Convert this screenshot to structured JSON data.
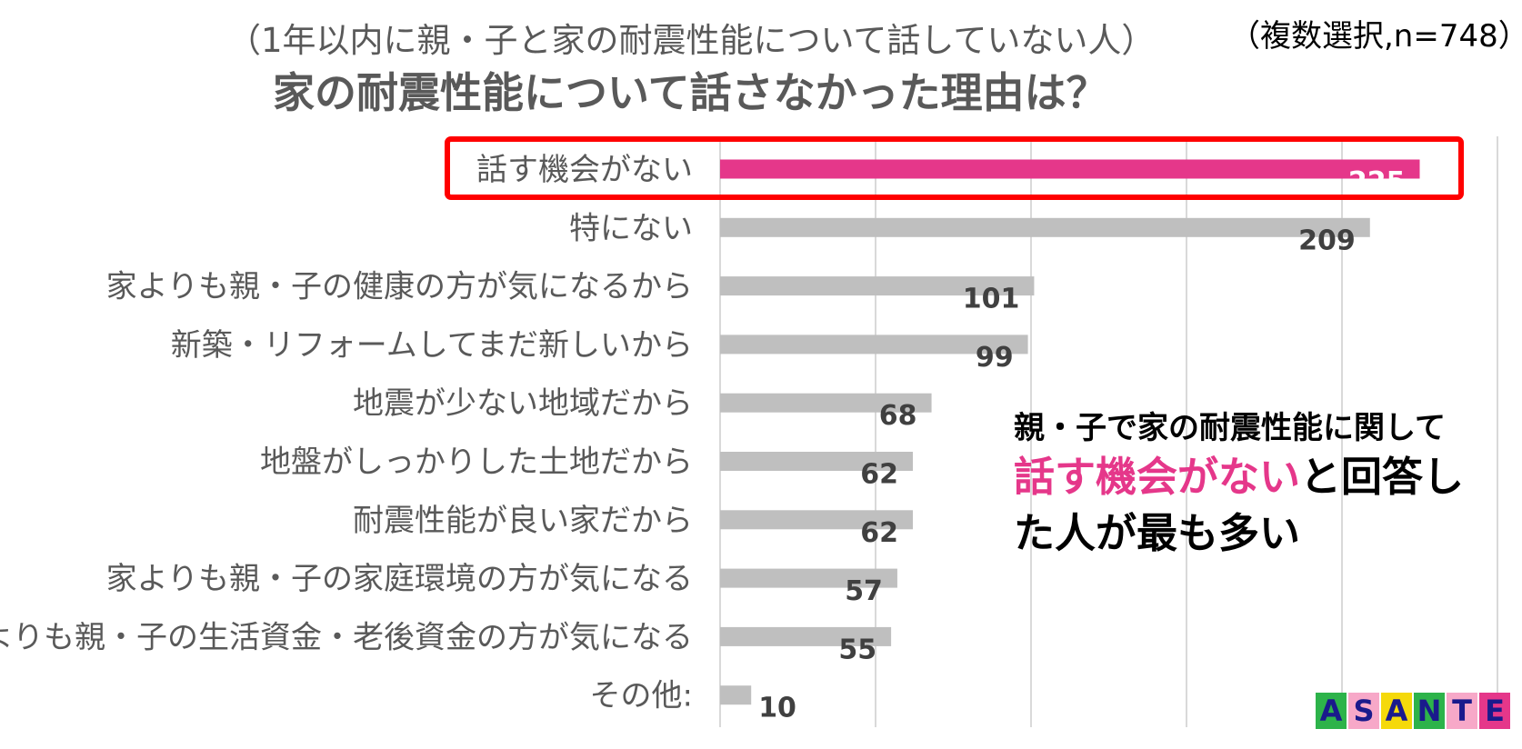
{
  "header": {
    "subtitle": "（1年以内に親・子と家の耐震性能について話していない人）",
    "title": "家の耐震性能について話さなかった理由は？",
    "note": "（複数選択,n=748）"
  },
  "callout": {
    "line1": "親・子で家の耐震性能に関して",
    "highlight": "話す機会がない",
    "rest": "と回答した人が最も多い"
  },
  "logo": {
    "text": "ASANTE",
    "tiles": [
      {
        "letter": "A",
        "bg": "#2db34a"
      },
      {
        "letter": "S",
        "bg": "#f7a8c8"
      },
      {
        "letter": "A",
        "bg": "#f5d90a"
      },
      {
        "letter": "N",
        "bg": "#2db34a"
      },
      {
        "letter": "T",
        "bg": "#f7a8c8"
      },
      {
        "letter": "E",
        "bg": "#e5378a"
      }
    ]
  },
  "colors": {
    "highlight_bar": "#e5378a",
    "bar": "#bfbfbf",
    "grid": "#d9d9d9",
    "highlight_box": "#ff0000"
  },
  "chart_data": {
    "type": "bar",
    "orientation": "horizontal",
    "title": "家の耐震性能について話さなかった理由は？",
    "categories": [
      "話す機会がない",
      "特にない",
      "家よりも親・子の健康の方が気になるから",
      "新築・リフォームしてまだ新しいから",
      "地震が少ない地域だから",
      "地盤がしっかりした土地だから",
      "耐震性能が良い家だから",
      "家よりも親・子の家庭環境の方が気になる",
      "家よりも親・子の生活資金・老後資金の方が気になる",
      "その他:"
    ],
    "values": [
      225,
      209,
      101,
      99,
      68,
      62,
      62,
      57,
      55,
      10
    ],
    "highlighted_index": 0,
    "xlim": [
      0,
      250
    ],
    "grid": true,
    "legend": "none"
  }
}
